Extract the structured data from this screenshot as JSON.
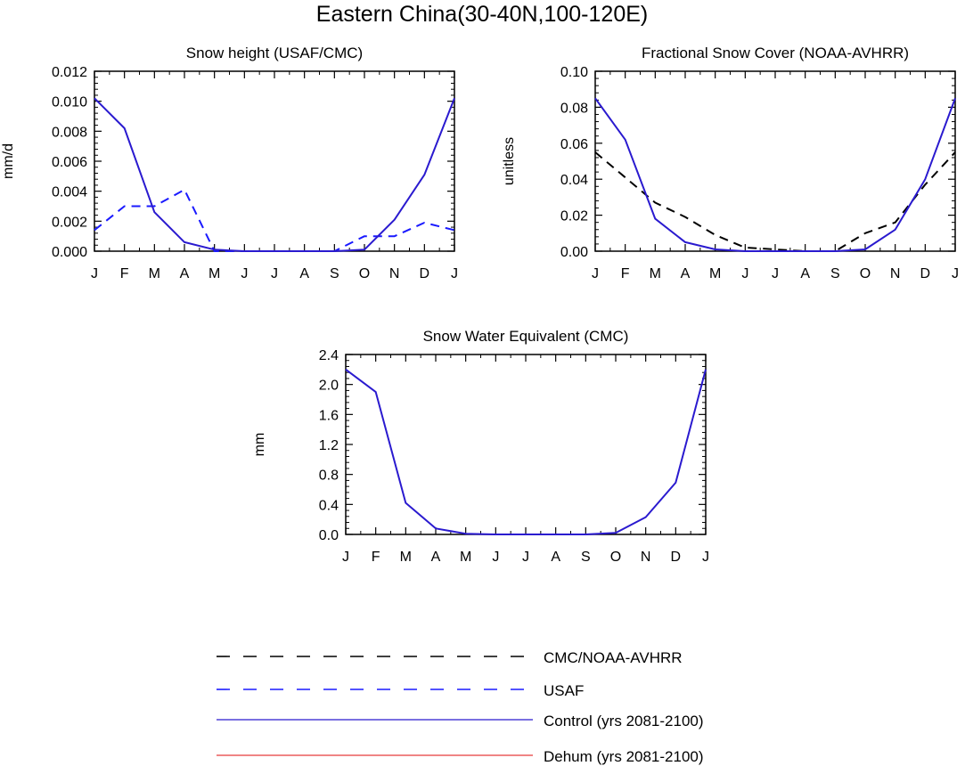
{
  "title": "Eastern China(30-40N,100-120E)",
  "months": [
    "J",
    "F",
    "M",
    "A",
    "M",
    "J",
    "J",
    "A",
    "S",
    "O",
    "N",
    "D",
    "J"
  ],
  "legend": [
    {
      "label": "CMC/NOAA-AVHRR",
      "color": "#000000",
      "dash": "dashed"
    },
    {
      "label": "USAF",
      "color": "#1a1aff",
      "dash": "dashed"
    },
    {
      "label": "Control (yrs 2081-2100)",
      "color": "#2a1acf",
      "dash": "solid"
    },
    {
      "label": "Dehum (yrs 2081-2100)",
      "color": "#e83a3a",
      "dash": "solid"
    }
  ],
  "chart_data": [
    {
      "type": "line",
      "title": "Snow height (USAF/CMC)",
      "ylabel": "mm/d",
      "ylim": [
        0,
        0.012
      ],
      "yticks": [
        "0.000",
        "0.002",
        "0.004",
        "0.006",
        "0.008",
        "0.010",
        "0.012"
      ],
      "x": [
        "J",
        "F",
        "M",
        "A",
        "M",
        "J",
        "J",
        "A",
        "S",
        "O",
        "N",
        "D",
        "J"
      ],
      "series": [
        {
          "name": "USAF",
          "color": "#1a1aff",
          "dash": "dashed",
          "values": [
            0.0014,
            0.003,
            0.003,
            0.0041,
            0.0,
            0.0,
            0.0,
            0.0,
            0.0,
            0.001,
            0.001,
            0.0019,
            0.0014
          ]
        },
        {
          "name": "Control (yrs 2081-2100)",
          "color": "#2a1acf",
          "dash": "solid",
          "values": [
            0.0102,
            0.0082,
            0.0026,
            0.0006,
            0.0001,
            0.0,
            0.0,
            0.0,
            0.0,
            0.0001,
            0.0021,
            0.0051,
            0.0102
          ]
        }
      ]
    },
    {
      "type": "line",
      "title": "Fractional Snow Cover (NOAA-AVHRR)",
      "ylabel": "unitless",
      "ylim": [
        0,
        0.1
      ],
      "yticks": [
        "0.00",
        "0.02",
        "0.04",
        "0.06",
        "0.08",
        "0.10"
      ],
      "x": [
        "J",
        "F",
        "M",
        "A",
        "M",
        "J",
        "J",
        "A",
        "S",
        "O",
        "N",
        "D",
        "J"
      ],
      "series": [
        {
          "name": "CMC/NOAA-AVHRR",
          "color": "#000000",
          "dash": "dashed",
          "values": [
            0.055,
            0.041,
            0.027,
            0.019,
            0.009,
            0.002,
            0.001,
            0.0,
            0.0,
            0.01,
            0.016,
            0.037,
            0.055
          ]
        },
        {
          "name": "Control (yrs 2081-2100)",
          "color": "#2a1acf",
          "dash": "solid",
          "values": [
            0.085,
            0.062,
            0.018,
            0.005,
            0.001,
            0.0,
            0.0,
            0.0,
            0.0,
            0.001,
            0.012,
            0.04,
            0.085
          ]
        }
      ]
    },
    {
      "type": "line",
      "title": "Snow Water Equivalent (CMC)",
      "ylabel": "mm",
      "ylim": [
        0,
        2.4
      ],
      "yticks": [
        "0.0",
        "0.4",
        "0.8",
        "1.2",
        "1.6",
        "2.0",
        "2.4"
      ],
      "x": [
        "J",
        "F",
        "M",
        "A",
        "M",
        "J",
        "J",
        "A",
        "S",
        "O",
        "N",
        "D",
        "J"
      ],
      "series": [
        {
          "name": "Control (yrs 2081-2100)",
          "color": "#2a1acf",
          "dash": "solid",
          "values": [
            2.2,
            1.9,
            0.42,
            0.08,
            0.01,
            0.0,
            0.0,
            0.0,
            0.0,
            0.02,
            0.23,
            0.69,
            2.2
          ]
        }
      ]
    }
  ]
}
